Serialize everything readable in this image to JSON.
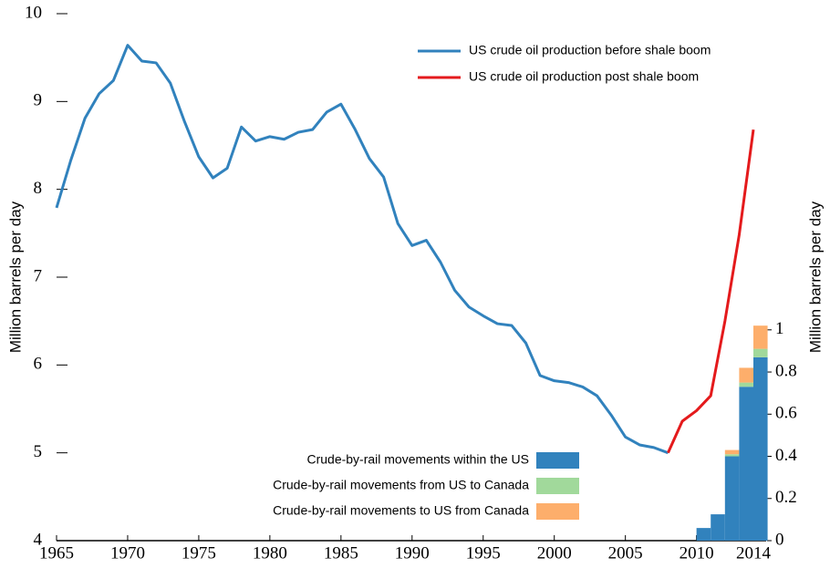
{
  "chart_data": {
    "type": "line",
    "x": [
      1965,
      1966,
      1967,
      1968,
      1969,
      1970,
      1971,
      1972,
      1973,
      1974,
      1975,
      1976,
      1977,
      1978,
      1979,
      1980,
      1981,
      1982,
      1983,
      1984,
      1985,
      1986,
      1987,
      1988,
      1989,
      1990,
      1991,
      1992,
      1993,
      1994,
      1995,
      1996,
      1997,
      1998,
      1999,
      2000,
      2001,
      2002,
      2003,
      2004,
      2005,
      2006,
      2007,
      2008,
      2009,
      2010,
      2011,
      2012,
      2013,
      2014
    ],
    "series": [
      {
        "name": "US crude oil production before shale boom",
        "color": "#3182bd",
        "values": [
          7.79,
          8.33,
          8.81,
          9.09,
          9.24,
          9.64,
          9.46,
          9.44,
          9.21,
          8.77,
          8.37,
          8.13,
          8.24,
          8.71,
          8.55,
          8.6,
          8.57,
          8.65,
          8.68,
          8.88,
          8.97,
          8.68,
          8.35,
          8.14,
          7.61,
          7.36,
          7.42,
          7.17,
          6.85,
          6.66,
          6.56,
          6.47,
          6.45,
          6.25,
          5.88,
          5.82,
          5.8,
          5.75,
          5.65,
          5.43,
          5.18,
          5.09,
          5.06,
          5.0,
          null,
          null,
          null,
          null,
          null,
          null
        ]
      },
      {
        "name": "US crude oil production post shale boom",
        "color": "#e41a1c",
        "values": [
          null,
          null,
          null,
          null,
          null,
          null,
          null,
          null,
          null,
          null,
          null,
          null,
          null,
          null,
          null,
          null,
          null,
          null,
          null,
          null,
          null,
          null,
          null,
          null,
          null,
          null,
          null,
          null,
          null,
          null,
          null,
          null,
          null,
          null,
          null,
          null,
          null,
          null,
          null,
          null,
          null,
          null,
          null,
          5.0,
          5.36,
          5.48,
          5.65,
          6.5,
          7.48,
          8.68
        ]
      }
    ],
    "bars": {
      "type": "bar",
      "x": [
        2010,
        2011,
        2012,
        2013,
        2014
      ],
      "series": [
        {
          "name": "Crude-by-rail movements within the US",
          "color": "#3182bd",
          "axis": "y2",
          "values": [
            0.06,
            0.125,
            0.4,
            0.73,
            0.87
          ]
        },
        {
          "name": "Crude-by-rail movements from US to Canada",
          "color": "#a1d99b",
          "axis": "y2",
          "values": [
            0,
            0,
            0.01,
            0.02,
            0.04
          ]
        },
        {
          "name": "Crude-by-rail movements to US from Canada",
          "color": "#fdae6b",
          "axis": "y2",
          "values": [
            0,
            0,
            0.02,
            0.07,
            0.11
          ]
        }
      ]
    },
    "ylabel": "Million barrels per day",
    "y2label": "Million barrels per day",
    "xlim": [
      1965,
      2014
    ],
    "xticks": [
      1965,
      1970,
      1975,
      1980,
      1985,
      1990,
      1995,
      2000,
      2005,
      2010,
      2014
    ],
    "ylim": [
      4,
      10
    ],
    "yticks": [
      4,
      5,
      6,
      7,
      8,
      9,
      10
    ],
    "y2lim": [
      0,
      2.5
    ],
    "y2ticks": [
      0,
      0.2,
      0.4,
      0.6,
      0.8,
      1
    ]
  }
}
